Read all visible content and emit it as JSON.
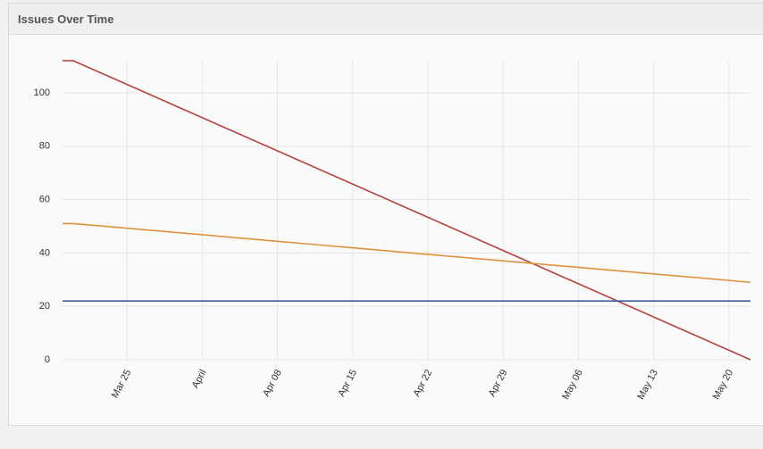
{
  "chart_data": {
    "type": "line",
    "title": "Issues Over Time",
    "x": [
      "Mar 19",
      "Mar 20",
      "May 22"
    ],
    "xlim": [
      "Mar 19",
      "May 22"
    ],
    "xticks": [
      "Mar 25",
      {
        "value": "Apr 01",
        "label": "April"
      },
      "Apr 08",
      "Apr 15",
      "Apr 22",
      "Apr 29",
      "May 06",
      "May 13",
      "May 20"
    ],
    "series": [
      {
        "color": "#b5403d",
        "values": [
          112,
          112,
          0
        ]
      },
      {
        "color": "#e0913f",
        "values": [
          51,
          51,
          29
        ]
      },
      {
        "color": "#3c5f9f",
        "values": [
          22,
          22,
          22
        ]
      }
    ],
    "ylim": [
      0,
      112
    ],
    "yticks": [
      0,
      20,
      40,
      60,
      80,
      100
    ],
    "grid": true
  }
}
